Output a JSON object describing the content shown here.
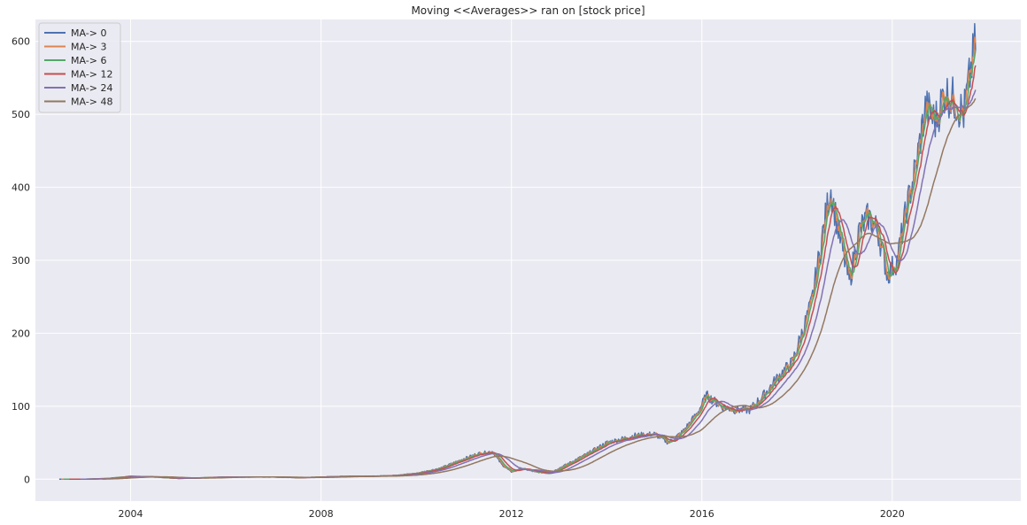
{
  "chart_data": {
    "type": "line",
    "title": "Moving <<Averages>> ran on [stock price]",
    "xlabel": "",
    "ylabel": "",
    "xlim": [
      2002.0,
      2022.7
    ],
    "ylim": [
      -30,
      630
    ],
    "x_ticks": [
      2004,
      2008,
      2012,
      2016,
      2020
    ],
    "x_tick_labels": [
      "2004",
      "2008",
      "2012",
      "2016",
      "2020"
    ],
    "y_ticks": [
      0,
      100,
      200,
      300,
      400,
      500,
      600
    ],
    "y_tick_labels": [
      "0",
      "100",
      "200",
      "300",
      "400",
      "500",
      "600"
    ],
    "grid": true,
    "legend_position": "top-left",
    "background_color": "#eaeaf2",
    "grid_color": "#ffffff",
    "series": [
      {
        "name": "MA-> 0",
        "color": "#4c72b0",
        "window": 0
      },
      {
        "name": "MA-> 3",
        "color": "#dd8452",
        "window": 3
      },
      {
        "name": "MA-> 6",
        "color": "#55a868",
        "window": 6
      },
      {
        "name": "MA-> 12",
        "color": "#c44e52",
        "window": 12
      },
      {
        "name": "MA-> 24",
        "color": "#8172b3",
        "window": 24
      },
      {
        "name": "MA-> 48",
        "color": "#937860",
        "window": 48
      }
    ],
    "price_anchors": {
      "x": [
        2002.5,
        2003.0,
        2003.5,
        2004.0,
        2004.5,
        2005.0,
        2005.5,
        2006.0,
        2006.5,
        2007.0,
        2007.5,
        2008.0,
        2008.5,
        2009.0,
        2009.5,
        2010.0,
        2010.5,
        2011.0,
        2011.3,
        2011.6,
        2011.8,
        2012.0,
        2012.2,
        2012.5,
        2012.8,
        2013.0,
        2013.3,
        2013.6,
        2014.0,
        2014.3,
        2014.6,
        2015.0,
        2015.3,
        2015.6,
        2015.9,
        2016.1,
        2016.4,
        2016.7,
        2017.0,
        2017.3,
        2017.6,
        2017.9,
        2018.1,
        2018.3,
        2018.5,
        2018.7,
        2018.9,
        2019.1,
        2019.3,
        2019.5,
        2019.7,
        2019.9,
        2020.1,
        2020.3,
        2020.5,
        2020.7,
        2020.9,
        2021.1,
        2021.3,
        2021.5,
        2021.75
      ],
      "y": [
        0,
        0,
        1,
        4,
        3,
        1,
        2,
        3,
        3,
        3,
        2,
        3,
        4,
        4,
        5,
        8,
        15,
        28,
        35,
        38,
        20,
        10,
        15,
        10,
        8,
        15,
        25,
        35,
        50,
        55,
        60,
        62,
        50,
        65,
        90,
        115,
        100,
        95,
        95,
        115,
        140,
        160,
        200,
        240,
        320,
        400,
        330,
        270,
        340,
        360,
        340,
        280,
        300,
        370,
        430,
        510,
        490,
        530,
        520,
        500,
        600
      ]
    }
  }
}
